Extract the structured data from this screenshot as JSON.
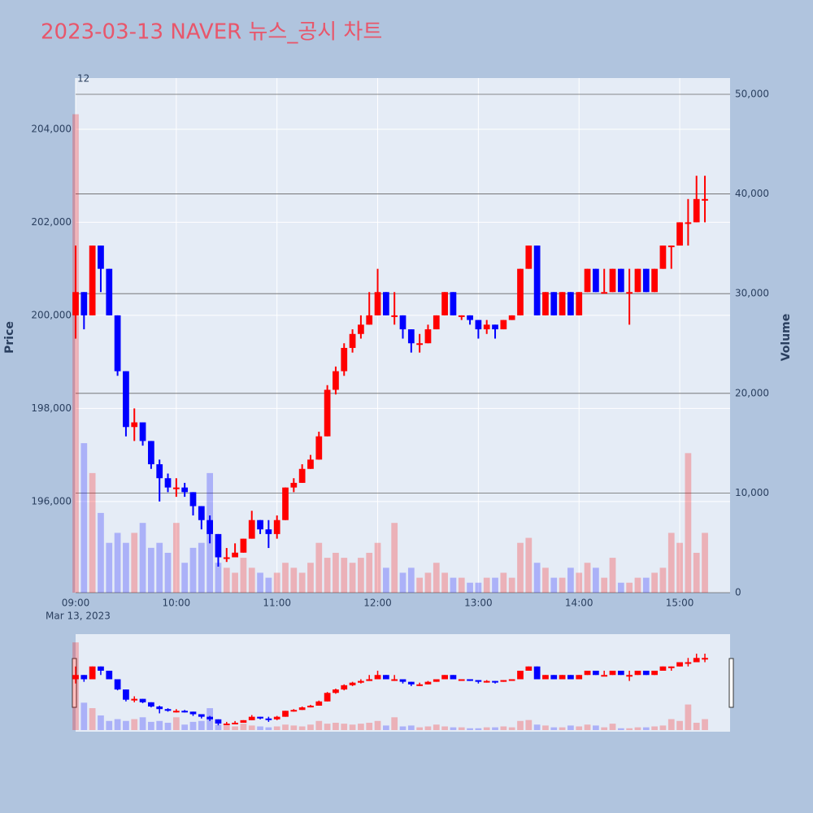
{
  "chart_data": {
    "type": "candlestick",
    "title": "2023-03-13 NAVER 뉴스_공시 차트",
    "annotation": "12",
    "y_title": "Price",
    "y2_title": "Volume",
    "x_sublabel": "Mar 13, 2023",
    "increasing_color": "#ff0000",
    "decreasing_color": "#0000ff",
    "x": [
      "09:00",
      "09:05",
      "09:10",
      "09:15",
      "09:20",
      "09:25",
      "09:30",
      "09:35",
      "09:40",
      "09:45",
      "09:50",
      "09:55",
      "10:00",
      "10:05",
      "10:10",
      "10:15",
      "10:20",
      "10:25",
      "10:30",
      "10:35",
      "10:40",
      "10:45",
      "10:50",
      "10:55",
      "11:00",
      "11:05",
      "11:10",
      "11:15",
      "11:20",
      "11:25",
      "11:30",
      "11:35",
      "11:40",
      "11:45",
      "11:50",
      "11:55",
      "12:00",
      "12:05",
      "12:10",
      "12:15",
      "12:20",
      "12:25",
      "12:30",
      "12:35",
      "12:40",
      "12:45",
      "12:50",
      "12:55",
      "13:00",
      "13:05",
      "13:10",
      "13:15",
      "13:20",
      "13:25",
      "13:30",
      "13:35",
      "13:40",
      "13:45",
      "13:50",
      "13:55",
      "14:00",
      "14:05",
      "14:10",
      "14:15",
      "14:20",
      "14:25",
      "14:30",
      "14:35",
      "14:40",
      "14:45",
      "14:50",
      "14:55",
      "15:00",
      "15:05",
      "15:10",
      "15:15"
    ],
    "open": [
      200000,
      200500,
      200000,
      201500,
      201000,
      200000,
      198800,
      197600,
      197700,
      197300,
      196800,
      196500,
      196300,
      196300,
      196200,
      195900,
      195600,
      195300,
      194800,
      194800,
      194900,
      195200,
      195600,
      195400,
      195300,
      195600,
      196300,
      196400,
      196700,
      196900,
      197400,
      198400,
      198800,
      199300,
      199600,
      199800,
      200000,
      200500,
      200000,
      200000,
      199700,
      199400,
      199400,
      199700,
      200000,
      200500,
      200000,
      200000,
      199900,
      199700,
      199800,
      199700,
      199900,
      200000,
      201000,
      201500,
      200000,
      200500,
      200000,
      200500,
      200000,
      200500,
      201000,
      200500,
      200500,
      201000,
      200500,
      200500,
      201000,
      200500,
      201000,
      201500,
      201500,
      202000,
      202000,
      202500
    ],
    "high": [
      201500,
      200500,
      201500,
      201500,
      201000,
      200000,
      198800,
      198000,
      197700,
      197300,
      196900,
      196600,
      196500,
      196400,
      196200,
      195900,
      195700,
      195300,
      195000,
      195100,
      195200,
      195800,
      195600,
      195600,
      195700,
      196300,
      196500,
      196800,
      197000,
      197500,
      198500,
      198900,
      199400,
      199700,
      200000,
      200500,
      201000,
      200500,
      200500,
      200000,
      199700,
      199600,
      199800,
      200000,
      200500,
      200500,
      200000,
      200000,
      199900,
      199900,
      199800,
      199900,
      200000,
      201000,
      201500,
      201500,
      200500,
      200500,
      200500,
      200500,
      200500,
      201000,
      201000,
      201000,
      201000,
      201000,
      201000,
      201000,
      201000,
      201000,
      201500,
      201500,
      202000,
      202500,
      203000,
      203000
    ],
    "low": [
      199500,
      199700,
      200000,
      200500,
      200000,
      198700,
      197400,
      197300,
      197200,
      196700,
      196000,
      196200,
      196100,
      196100,
      195700,
      195400,
      195100,
      194600,
      194700,
      194800,
      194900,
      195200,
      195300,
      195000,
      195200,
      195600,
      196200,
      196400,
      196700,
      196900,
      197400,
      198300,
      198700,
      199200,
      199500,
      199800,
      200000,
      200000,
      199800,
      199500,
      199200,
      199200,
      199400,
      199700,
      200000,
      200000,
      199900,
      199800,
      199500,
      199600,
      199500,
      199700,
      199900,
      200000,
      201000,
      200000,
      200000,
      200000,
      200000,
      200000,
      200000,
      200500,
      200500,
      200500,
      200500,
      200500,
      199800,
      200500,
      200500,
      200500,
      201000,
      201000,
      201500,
      201500,
      202000,
      202000
    ],
    "close": [
      200500,
      200000,
      201500,
      201000,
      200000,
      198800,
      197600,
      197700,
      197300,
      196800,
      196500,
      196300,
      196300,
      196200,
      195900,
      195600,
      195300,
      194800,
      194800,
      194900,
      195200,
      195600,
      195400,
      195300,
      195600,
      196300,
      196400,
      196700,
      196900,
      197400,
      198400,
      198800,
      199300,
      199600,
      199800,
      200000,
      200500,
      200000,
      200000,
      199700,
      199400,
      199400,
      199700,
      200000,
      200500,
      200000,
      200000,
      199900,
      199700,
      199800,
      199700,
      199900,
      200000,
      201000,
      201500,
      200000,
      200500,
      200000,
      200500,
      200000,
      200500,
      201000,
      200500,
      200500,
      201000,
      200500,
      200500,
      201000,
      200500,
      201000,
      201500,
      201500,
      202000,
      202000,
      202500,
      202500
    ],
    "volume": [
      48000,
      15000,
      12000,
      8000,
      5000,
      6000,
      5000,
      6000,
      7000,
      4500,
      5000,
      4000,
      7000,
      3000,
      4500,
      5000,
      12000,
      3000,
      2500,
      2000,
      3500,
      2500,
      2000,
      1500,
      2000,
      3000,
      2500,
      2000,
      3000,
      5000,
      3500,
      4000,
      3500,
      3000,
      3500,
      4000,
      5000,
      2500,
      7000,
      2000,
      2500,
      1500,
      2000,
      3000,
      2000,
      1500,
      1500,
      1000,
      1000,
      1500,
      1500,
      2000,
      1500,
      5000,
      5500,
      3000,
      2500,
      1500,
      1500,
      2500,
      2000,
      3000,
      2500,
      1500,
      3500,
      1000,
      1000,
      1500,
      1500,
      2000,
      2500,
      6000,
      5000,
      14000,
      4000,
      6000
    ],
    "xlim": [
      "09:00",
      "15:30"
    ],
    "xticks": [
      "09:00",
      "10:00",
      "11:00",
      "12:00",
      "13:00",
      "14:00",
      "15:00"
    ],
    "ylim": [
      194040,
      205100
    ],
    "yticks": [
      {
        "value": 196000,
        "label": "196,000"
      },
      {
        "value": 198000,
        "label": "198,000"
      },
      {
        "value": 200000,
        "label": "200,000"
      },
      {
        "value": 202000,
        "label": "202,000"
      },
      {
        "value": 204000,
        "label": "204,000"
      }
    ],
    "y2lim": [
      0,
      51630
    ],
    "y2ticks": [
      0,
      {
        "value": 10000,
        "label": "10,000"
      },
      {
        "value": 20000,
        "label": "20,000"
      },
      {
        "value": 30000,
        "label": "30,000"
      },
      {
        "value": 40000,
        "label": "40,000"
      },
      {
        "value": 50000,
        "label": "50,000"
      }
    ],
    "grid": true
  }
}
